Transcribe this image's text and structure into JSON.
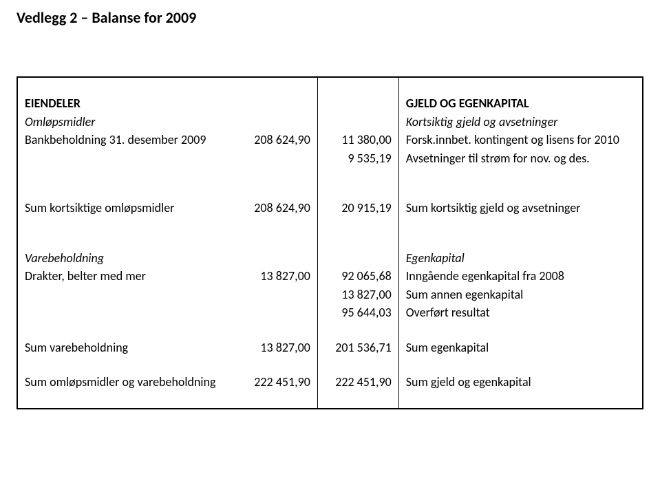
{
  "title": "Vedlegg 2 – Balanse for 2009",
  "left": {
    "header": "EIENDELER",
    "section1": {
      "label": "Omløpsmidler",
      "rows": [
        {
          "label": "Bankbeholdning 31. desember 2009",
          "c2": "208 624,90",
          "c3": "11 380,00"
        },
        {
          "label": "",
          "c2": "",
          "c3": "9 535,19"
        }
      ]
    },
    "sum1": {
      "label": "Sum kortsiktige omløpsmidler",
      "c2": "208 624,90",
      "c3": "20 915,19"
    },
    "section2": {
      "label": "Varebeholdning",
      "rows": [
        {
          "label": "Drakter, belter med mer",
          "c2": "13 827,00",
          "c3": "92 065,68"
        },
        {
          "label": "",
          "c2": "",
          "c3": "13 827,00"
        },
        {
          "label": "",
          "c2": "",
          "c3": "95 644,03"
        }
      ]
    },
    "sum2": {
      "label": "Sum varebeholdning",
      "c2": "13 827,00",
      "c3": "201 536,71"
    },
    "sum3": {
      "label": "Sum omløpsmidler og varebeholdning",
      "c2": "222 451,90",
      "c3": "222 451,90"
    }
  },
  "right": {
    "header": "GJELD OG EGENKAPITAL",
    "section1": {
      "label": "Kortsiktig gjeld og avsetninger",
      "rows": [
        "Forsk.innbet. kontingent og lisens for 2010",
        "Avsetninger til strøm for nov. og des."
      ]
    },
    "sum1": "Sum kortsiktig gjeld og avsetninger",
    "section2": {
      "label": "Egenkapital",
      "rows": [
        "Inngående egenkapital fra 2008",
        "Sum annen egenkapital",
        "Overført resultat"
      ]
    },
    "sum2": "Sum egenkapital",
    "sum3": "Sum gjeld og egenkapital"
  },
  "style": {
    "text_color": "#000000",
    "background_color": "#ffffff",
    "border_color": "#000000",
    "title_fontsize": 22,
    "body_fontsize": 18
  }
}
